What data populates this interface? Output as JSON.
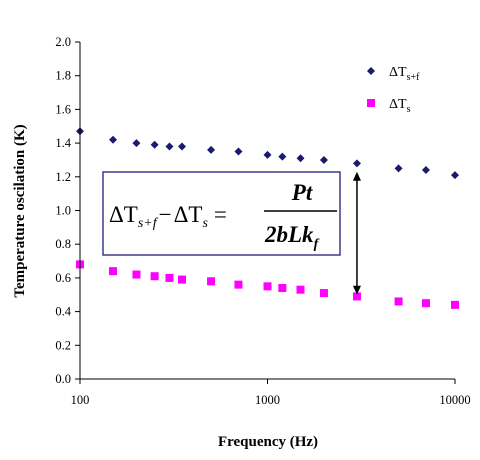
{
  "chart_data": {
    "type": "scatter",
    "xlabel": "Frequency (Hz)",
    "ylabel": "Temperature oscilation (K)",
    "xscale": "log",
    "xlim": [
      100,
      10000
    ],
    "ylim": [
      0,
      2.0
    ],
    "x_ticks": [
      "100",
      "1000",
      "10000"
    ],
    "y_ticks": [
      "0.0",
      "0.2",
      "0.4",
      "0.6",
      "0.8",
      "1.0",
      "1.2",
      "1.4",
      "1.6",
      "1.8",
      "2.0"
    ],
    "grid": false,
    "legend_position": "top-right",
    "series": [
      {
        "name": "ΔTs+f",
        "legend_main": "ΔT",
        "legend_sub": "s+f",
        "marker": "diamond",
        "color": "#1a1a6e",
        "x": [
          100,
          150,
          200,
          250,
          300,
          350,
          500,
          700,
          1000,
          1200,
          1500,
          2000,
          3000,
          5000,
          7000,
          10000
        ],
        "y": [
          1.47,
          1.42,
          1.4,
          1.39,
          1.38,
          1.38,
          1.36,
          1.35,
          1.33,
          1.32,
          1.31,
          1.3,
          1.28,
          1.25,
          1.24,
          1.21
        ]
      },
      {
        "name": "ΔTs",
        "legend_main": "ΔT",
        "legend_sub": "s",
        "marker": "square",
        "color": "#ff00ff",
        "x": [
          100,
          150,
          200,
          250,
          300,
          350,
          500,
          700,
          1000,
          1200,
          1500,
          2000,
          3000,
          5000,
          7000,
          10000
        ],
        "y": [
          0.68,
          0.64,
          0.62,
          0.61,
          0.6,
          0.59,
          0.58,
          0.56,
          0.55,
          0.54,
          0.53,
          0.51,
          0.49,
          0.46,
          0.45,
          0.44
        ]
      }
    ],
    "annotation": {
      "lhs_1": "ΔT",
      "lhs_1_sub": "s+f",
      "minus": "−",
      "lhs_2": "ΔT",
      "lhs_2_sub": "s",
      "equals": "=",
      "numerator": "Pt",
      "denominator": "2bLk",
      "denominator_sub": "f"
    },
    "arrow": {
      "x": 3000,
      "y_top": 1.23,
      "y_bottom": 0.5
    }
  }
}
